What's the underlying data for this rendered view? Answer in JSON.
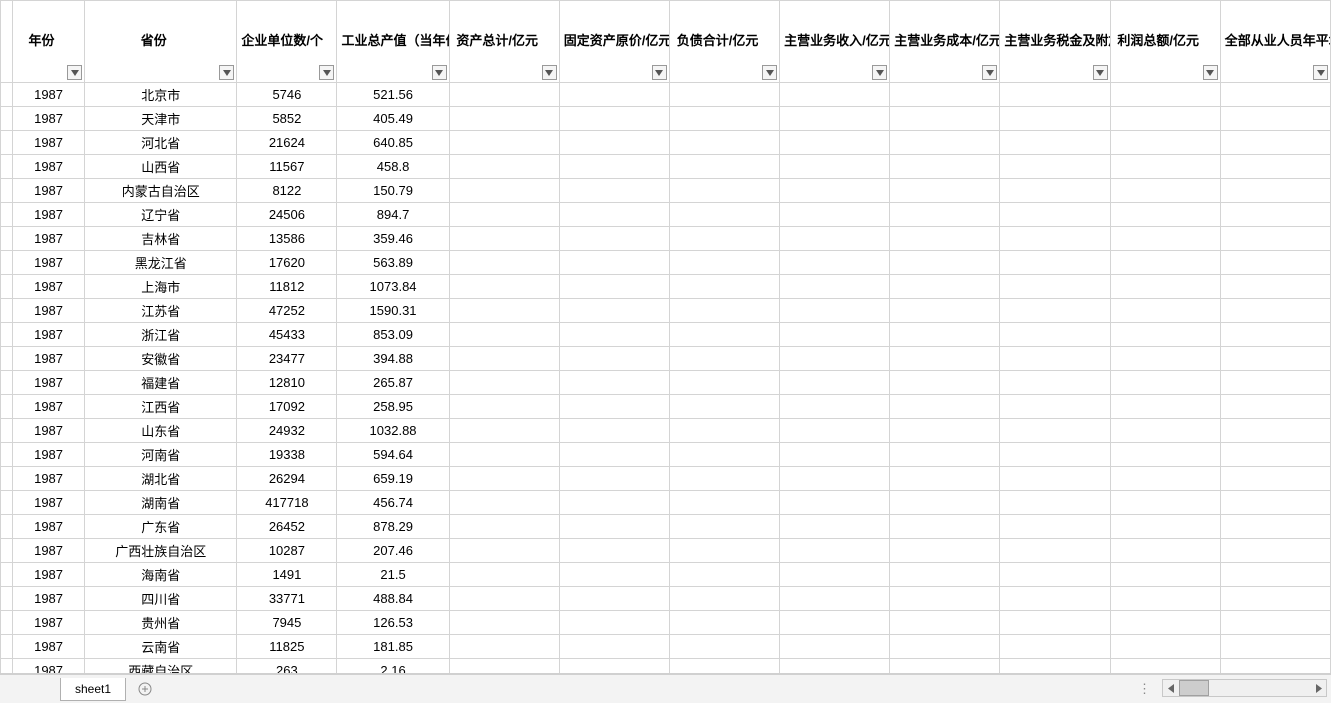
{
  "columns": [
    {
      "key": "year",
      "label": "年份",
      "width_class": "c-year"
    },
    {
      "key": "province",
      "label": "省份",
      "width_class": "c-province"
    },
    {
      "key": "enterprise_count",
      "label": "企业单位数/个",
      "width_class": "c-count"
    },
    {
      "key": "industrial_output",
      "label": "工业总产值（当年价格）/亿元",
      "width_class": "c-output"
    },
    {
      "key": "total_assets",
      "label": "资产总计/亿元",
      "width_class": "c-other"
    },
    {
      "key": "fixed_assets",
      "label": "固定资产原价/亿元",
      "width_class": "c-other"
    },
    {
      "key": "total_liabilities",
      "label": "负债合计/亿元",
      "width_class": "c-other"
    },
    {
      "key": "main_revenue",
      "label": "主营业务收入/亿元",
      "width_class": "c-other"
    },
    {
      "key": "main_cost",
      "label": "主营业务成本/亿元",
      "width_class": "c-other"
    },
    {
      "key": "main_tax",
      "label": "主营业务税金及附加/亿元",
      "width_class": "c-other"
    },
    {
      "key": "total_profit",
      "label": "利润总额/亿元",
      "width_class": "c-other"
    },
    {
      "key": "avg_employees",
      "label": "全部从业人员年平均人数/万人",
      "width_class": "c-other"
    }
  ],
  "rows": [
    {
      "year": "1987",
      "province": "北京市",
      "enterprise_count": "5746",
      "industrial_output": "521.56"
    },
    {
      "year": "1987",
      "province": "天津市",
      "enterprise_count": "5852",
      "industrial_output": "405.49"
    },
    {
      "year": "1987",
      "province": "河北省",
      "enterprise_count": "21624",
      "industrial_output": "640.85"
    },
    {
      "year": "1987",
      "province": "山西省",
      "enterprise_count": "11567",
      "industrial_output": "458.8"
    },
    {
      "year": "1987",
      "province": "内蒙古自治区",
      "enterprise_count": "8122",
      "industrial_output": "150.79"
    },
    {
      "year": "1987",
      "province": "辽宁省",
      "enterprise_count": "24506",
      "industrial_output": "894.7"
    },
    {
      "year": "1987",
      "province": "吉林省",
      "enterprise_count": "13586",
      "industrial_output": "359.46"
    },
    {
      "year": "1987",
      "province": "黑龙江省",
      "enterprise_count": "17620",
      "industrial_output": "563.89"
    },
    {
      "year": "1987",
      "province": "上海市",
      "enterprise_count": "11812",
      "industrial_output": "1073.84"
    },
    {
      "year": "1987",
      "province": "江苏省",
      "enterprise_count": "47252",
      "industrial_output": "1590.31"
    },
    {
      "year": "1987",
      "province": "浙江省",
      "enterprise_count": "45433",
      "industrial_output": "853.09"
    },
    {
      "year": "1987",
      "province": "安徽省",
      "enterprise_count": "23477",
      "industrial_output": "394.88"
    },
    {
      "year": "1987",
      "province": "福建省",
      "enterprise_count": "12810",
      "industrial_output": "265.87"
    },
    {
      "year": "1987",
      "province": "江西省",
      "enterprise_count": "17092",
      "industrial_output": "258.95"
    },
    {
      "year": "1987",
      "province": "山东省",
      "enterprise_count": "24932",
      "industrial_output": "1032.88"
    },
    {
      "year": "1987",
      "province": "河南省",
      "enterprise_count": "19338",
      "industrial_output": "594.64"
    },
    {
      "year": "1987",
      "province": "湖北省",
      "enterprise_count": "26294",
      "industrial_output": "659.19"
    },
    {
      "year": "1987",
      "province": "湖南省",
      "enterprise_count": "417718",
      "industrial_output": "456.74"
    },
    {
      "year": "1987",
      "province": "广东省",
      "enterprise_count": "26452",
      "industrial_output": "878.29"
    },
    {
      "year": "1987",
      "province": "广西壮族自治区",
      "enterprise_count": "10287",
      "industrial_output": "207.46"
    },
    {
      "year": "1987",
      "province": "海南省",
      "enterprise_count": "1491",
      "industrial_output": "21.5"
    },
    {
      "year": "1987",
      "province": "四川省",
      "enterprise_count": "33771",
      "industrial_output": "488.84"
    },
    {
      "year": "1987",
      "province": "贵州省",
      "enterprise_count": "7945",
      "industrial_output": "126.53"
    },
    {
      "year": "1987",
      "province": "云南省",
      "enterprise_count": "11825",
      "industrial_output": "181.85"
    },
    {
      "year": "1987",
      "province": "西藏自治区",
      "enterprise_count": "263",
      "industrial_output": "2.16"
    }
  ],
  "sheet_tab": "sheet1",
  "colors": {
    "border": "#d4d4d4",
    "header_bg": "#ffffff",
    "tab_bg": "#f3f3f3",
    "filter_border": "#999999"
  }
}
